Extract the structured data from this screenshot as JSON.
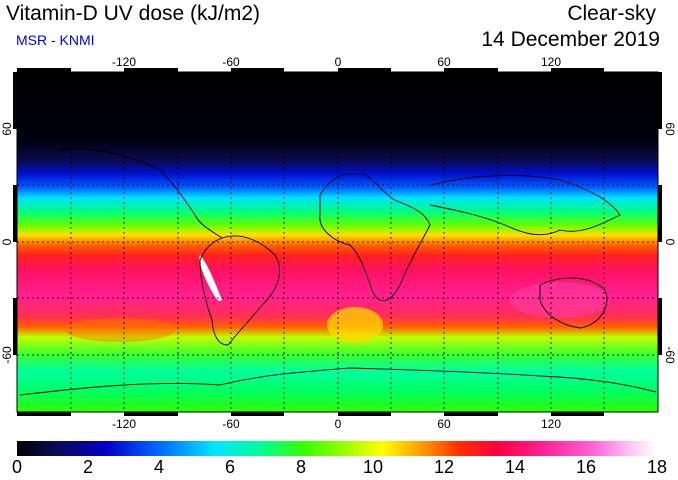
{
  "header": {
    "title": "Vitamin-D UV dose (kJ/m2)",
    "subtitle": "MSR - KNMI",
    "mode": "Clear-sky",
    "date": "14 December 2019"
  },
  "map": {
    "lon_ticks": [
      "-120",
      "-60",
      "0",
      "60",
      "120"
    ],
    "lat_ticks": [
      "60",
      "0",
      "-60"
    ],
    "lat_ticks_right": [
      "60",
      "0",
      "-60"
    ]
  },
  "colorbar": {
    "labels": [
      "0",
      "2",
      "4",
      "6",
      "8",
      "10",
      "12",
      "14",
      "16",
      "18"
    ],
    "min": 0,
    "max": 18,
    "unit": "kJ/m2"
  },
  "colors": {
    "low": "#000000",
    "mid": "#00ff00",
    "high": "#ff0040",
    "peak": "#ffffff"
  }
}
